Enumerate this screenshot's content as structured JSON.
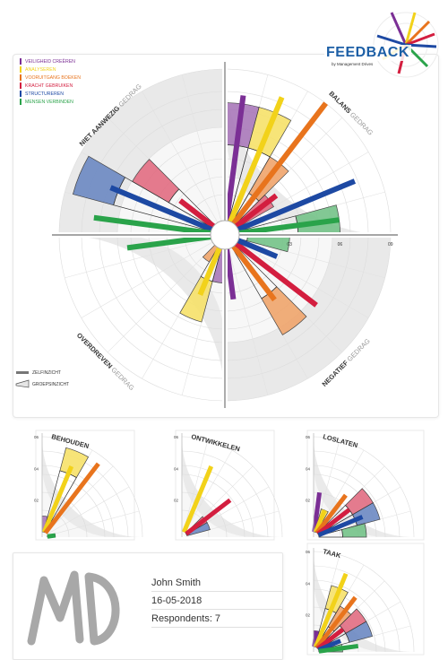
{
  "brand": {
    "title": "FEEDBACK",
    "subtitle": "by Management Drives"
  },
  "legend": {
    "items": [
      {
        "label": "VEILIGHEID CREËREN",
        "color": "#7b2f95"
      },
      {
        "label": "ANALYSEREN",
        "color": "#f2d21a"
      },
      {
        "label": "VOORUITGANG BOEKEN",
        "color": "#e8741d"
      },
      {
        "label": "KRACHT GEBRUIKEN",
        "color": "#d31e3f"
      },
      {
        "label": "STRUCTUREREN",
        "color": "#1d49a3"
      },
      {
        "label": "MENSEN VERBINDEN",
        "color": "#2aa34a"
      }
    ],
    "self_label": "ZELFINZICHT",
    "group_label": "GROEPSINZICHT"
  },
  "quadrant_labels": {
    "top_left": {
      "bold": "NIET AANWEZIG",
      "light": "GEDRAG"
    },
    "top_right": {
      "bold": "BALANS",
      "light": "GEDRAG"
    },
    "bottom_left": {
      "bold": "OVERDREVEN",
      "light": "GEDRAG"
    },
    "bottom_right": {
      "bold": "NEGATIEF",
      "light": "GEDRAG"
    }
  },
  "person": {
    "name": "John Smith",
    "date": "16-05-2018",
    "respondents": "Respondents: 7"
  },
  "chart_data": [
    {
      "type": "polar-bar",
      "title": "",
      "scale_ticks": [
        "03",
        "06",
        "09"
      ],
      "rlim": [
        0,
        9
      ],
      "quadrants": [
        {
          "name": "NIET AANWEZIG GEDRAG",
          "self": [
            0,
            0,
            0,
            2.5,
            6.5,
            7
          ],
          "group": [
            0,
            0,
            0,
            5.5,
            8.5,
            0
          ]
        },
        {
          "name": "BALANS GEDRAG",
          "self": [
            7.5,
            8,
            9,
            3,
            7.5,
            6
          ],
          "group": [
            7,
            7,
            4.5,
            2.5,
            0,
            6
          ]
        },
        {
          "name": "NEGATIEF GEDRAG",
          "self": [
            3,
            0,
            4,
            6,
            2.5,
            0
          ],
          "group": [
            0,
            0,
            6,
            0,
            0,
            3
          ]
        },
        {
          "name": "OVERDREVEN GEDRAG",
          "self": [
            0,
            3,
            0,
            0,
            0,
            5
          ],
          "group": [
            2,
            4.5,
            1,
            0,
            0,
            0
          ]
        }
      ],
      "series": [
        {
          "name": "VEILIGHEID CREËREN"
        },
        {
          "name": "ANALYSEREN"
        },
        {
          "name": "VOORUITGANG BOEKEN"
        },
        {
          "name": "KRACHT GEBRUIKEN"
        },
        {
          "name": "STRUCTUREREN"
        },
        {
          "name": "MENSEN VERBINDEN"
        }
      ]
    },
    {
      "type": "polar-bar",
      "title": "BEHOUDEN",
      "scale_ticks": [
        "02",
        "04",
        "06"
      ],
      "rlim": [
        0,
        6
      ],
      "self": [
        0,
        4.5,
        5.5,
        0,
        0,
        0.5
      ],
      "group": [
        1,
        5.5,
        0,
        0,
        0,
        0.5
      ]
    },
    {
      "type": "polar-bar",
      "title": "ONTWIKKELEN",
      "scale_ticks": [
        "02",
        "04",
        "06"
      ],
      "rlim": [
        0,
        6
      ],
      "self": [
        0,
        4.5,
        0,
        3.5,
        0,
        0
      ],
      "group": [
        0,
        0,
        0,
        1.5,
        1.5,
        0
      ]
    },
    {
      "type": "polar-bar",
      "title": "LOSLATEN",
      "scale_ticks": [
        "02",
        "04",
        "06"
      ],
      "rlim": [
        0,
        6
      ],
      "self": [
        2.5,
        1.5,
        3,
        2.5,
        3,
        0
      ],
      "group": [
        0.5,
        1.5,
        0,
        4,
        4,
        3
      ]
    },
    {
      "type": "polar-bar",
      "title": "TAAK",
      "scale_ticks": [
        "02",
        "04",
        "06"
      ],
      "rlim": [
        0,
        6
      ],
      "self": [
        1,
        5,
        4,
        2,
        1.5,
        2.5
      ],
      "group": [
        1,
        4,
        3,
        3.5,
        3.5,
        1.5
      ]
    }
  ]
}
